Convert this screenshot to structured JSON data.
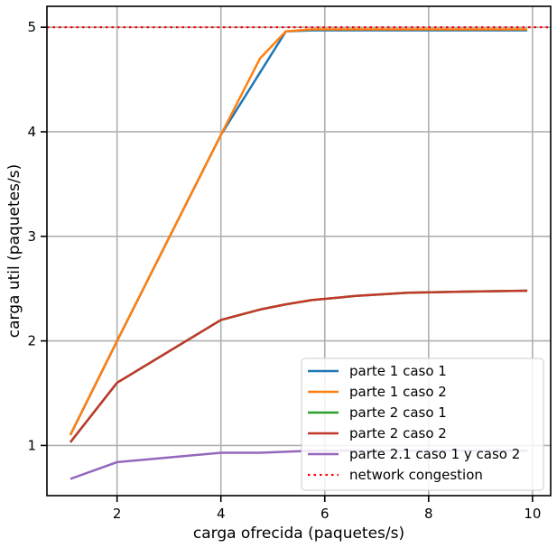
{
  "chart_data": {
    "type": "line",
    "title": "",
    "xlabel": "carga ofrecida (paquetes/s)",
    "ylabel": "carga util (paquetes/s)",
    "xlim": [
      0.65,
      10.35
    ],
    "ylim": [
      0.52,
      5.2
    ],
    "xticks": [
      2,
      4,
      6,
      8,
      10
    ],
    "yticks": [
      1,
      2,
      3,
      4,
      5
    ],
    "grid": true,
    "legend_position": "lower-right",
    "series": [
      {
        "name": "parte 1 caso 1",
        "color": "#1f77b4",
        "style": "solid",
        "x": [
          1.1,
          2.0,
          4.0,
          5.25,
          5.75,
          6.6,
          7.6,
          8.5,
          9.9
        ],
        "y": [
          1.1,
          2.0,
          3.97,
          4.96,
          4.97,
          4.97,
          4.97,
          4.97,
          4.97
        ]
      },
      {
        "name": "parte 1 caso 2",
        "color": "#ff7f0e",
        "style": "solid",
        "x": [
          1.1,
          2.0,
          4.0,
          4.75,
          5.25,
          5.75,
          6.6,
          7.6,
          8.5,
          9.9
        ],
        "y": [
          1.1,
          2.0,
          3.97,
          4.7,
          4.96,
          4.98,
          4.98,
          4.98,
          4.98,
          4.98
        ]
      },
      {
        "name": "parte 2 caso 1",
        "color": "#2ca02c",
        "style": "solid",
        "x": [
          1.1,
          2.0,
          4.0,
          4.75,
          5.25,
          5.75,
          6.6,
          7.6,
          8.5,
          9.9
        ],
        "y": [
          1.03,
          1.6,
          2.2,
          2.3,
          2.35,
          2.39,
          2.43,
          2.46,
          2.47,
          2.48
        ]
      },
      {
        "name": "parte 2 caso 2",
        "color": "#c0392b",
        "style": "solid",
        "x": [
          1.1,
          2.0,
          4.0,
          4.75,
          5.25,
          5.75,
          6.6,
          7.6,
          8.5,
          9.9
        ],
        "y": [
          1.03,
          1.6,
          2.2,
          2.3,
          2.35,
          2.39,
          2.43,
          2.46,
          2.47,
          2.48
        ]
      },
      {
        "name": "parte 2.1 caso 1 y caso 2",
        "color": "#9467bd",
        "style": "solid",
        "x": [
          1.1,
          2.0,
          4.0,
          4.75,
          5.25,
          5.75,
          6.6,
          7.6,
          8.5,
          9.9
        ],
        "y": [
          0.68,
          0.84,
          0.93,
          0.93,
          0.94,
          0.95,
          0.95,
          0.95,
          0.95,
          0.95
        ]
      },
      {
        "name": "network congestion",
        "color": "#ff0000",
        "style": "dotted",
        "x": [
          0.65,
          10.35
        ],
        "y": [
          5.0,
          5.0
        ]
      }
    ]
  }
}
